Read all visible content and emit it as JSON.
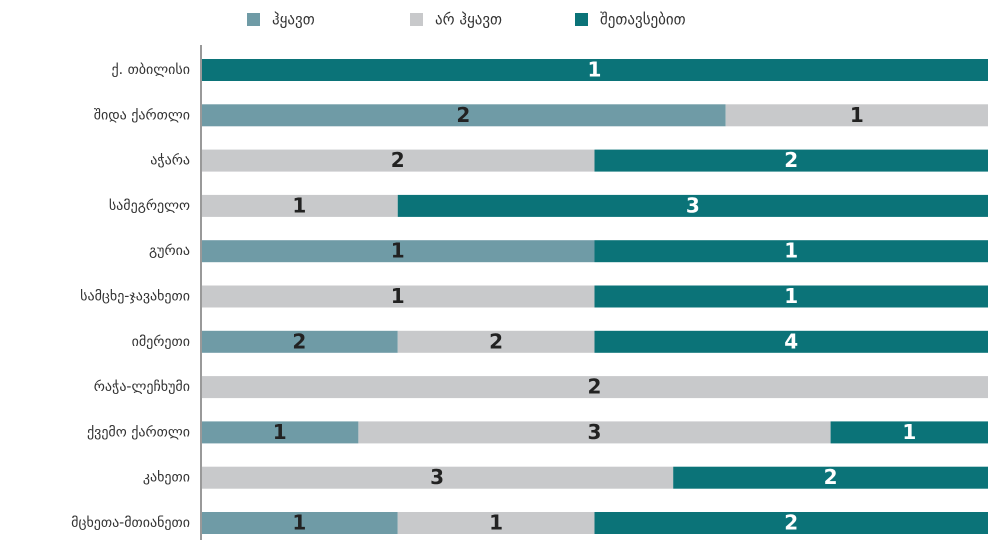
{
  "chart_data": {
    "type": "stacked-bar-100",
    "categories": [
      "ქ. თბილისი",
      "შიდა ქართლი",
      "აჭარა",
      "სამეგრელო",
      "გურია",
      "სამცხე-ჯავახეთი",
      "იმერეთი",
      "რაჭა-ლეჩხუმი",
      "ქვემო ქართლი",
      "კახეთი",
      "მცხეთა-მთიანეთი"
    ],
    "series": [
      {
        "name": "ჰყავთ",
        "color": "#6f9ba6",
        "values": [
          null,
          2,
          null,
          null,
          1,
          null,
          2,
          null,
          1,
          null,
          1
        ]
      },
      {
        "name": "არ ჰყავთ",
        "color": "#c8c9cb",
        "values": [
          null,
          1,
          2,
          1,
          null,
          1,
          2,
          2,
          3,
          3,
          1
        ]
      },
      {
        "name": "შეთავსებით",
        "color": "#0b7378",
        "values": [
          1,
          null,
          2,
          3,
          1,
          1,
          4,
          null,
          1,
          2,
          2
        ]
      }
    ]
  }
}
